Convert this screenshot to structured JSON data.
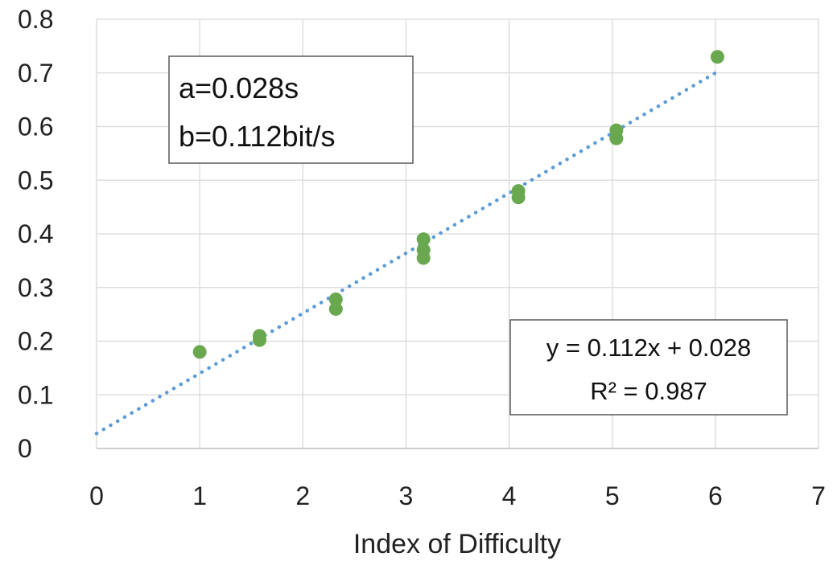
{
  "chart_data": {
    "type": "scatter",
    "title": "",
    "xlabel": "Index of Difficulty",
    "ylabel": "",
    "xlim": [
      0,
      7
    ],
    "ylim": [
      0,
      0.8
    ],
    "x_ticks": [
      "0",
      "1",
      "2",
      "3",
      "4",
      "5",
      "6",
      "7"
    ],
    "y_ticks": [
      "0",
      "0.1",
      "0.2",
      "0.3",
      "0.4",
      "0.5",
      "0.6",
      "0.7",
      "0.8"
    ],
    "grid": true,
    "series": [
      {
        "color": "#6aa84f",
        "points": [
          {
            "x": 1.0,
            "y": 0.18
          },
          {
            "x": 1.58,
            "y": 0.21
          },
          {
            "x": 1.58,
            "y": 0.202
          },
          {
            "x": 2.32,
            "y": 0.278
          },
          {
            "x": 2.32,
            "y": 0.26
          },
          {
            "x": 3.17,
            "y": 0.39
          },
          {
            "x": 3.17,
            "y": 0.37
          },
          {
            "x": 3.17,
            "y": 0.355
          },
          {
            "x": 4.09,
            "y": 0.48
          },
          {
            "x": 4.09,
            "y": 0.468
          },
          {
            "x": 5.04,
            "y": 0.593
          },
          {
            "x": 5.04,
            "y": 0.578
          },
          {
            "x": 6.02,
            "y": 0.73
          }
        ]
      }
    ],
    "trendline": {
      "type": "linear",
      "slope": 0.112,
      "intercept": 0.028,
      "x_range": [
        0,
        6
      ],
      "color": "#5b9bd5",
      "style": "dotted"
    },
    "annotations": {
      "params_line1": "a=0.028s",
      "params_line2": "b=0.112bit/s",
      "equation": "y = 0.112x + 0.028",
      "r_squared": "R² = 0.987"
    }
  }
}
